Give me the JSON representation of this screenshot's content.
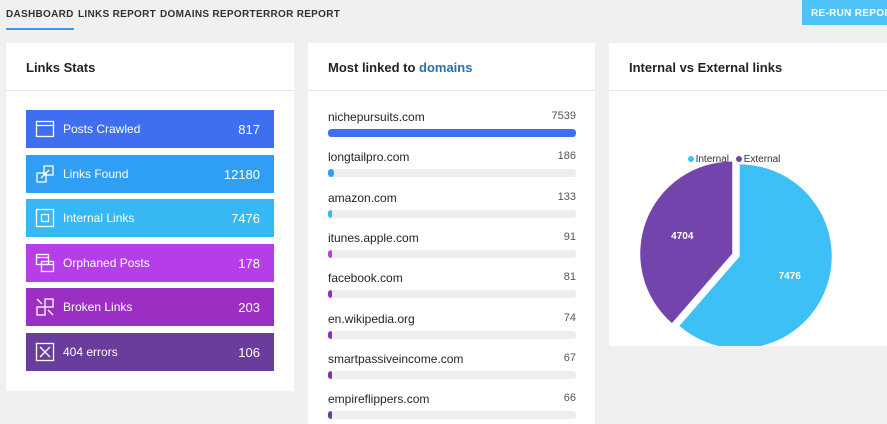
{
  "nav": {
    "tabs": [
      {
        "label": "DASHBOARD",
        "active": true
      },
      {
        "label": "LINKS REPORT",
        "active": false
      },
      {
        "label": "DOMAINS REPORT",
        "active": false
      },
      {
        "label": "ERROR REPORT",
        "active": false
      }
    ],
    "rerun_label": "RE-RUN REPORTS"
  },
  "stats": {
    "title": "Links Stats",
    "items": [
      {
        "label": "Posts Crawled",
        "value": "817",
        "icon": "browser-window-icon",
        "color": "#3f6ff0"
      },
      {
        "label": "Links Found",
        "value": "12180",
        "icon": "link-squares-icon",
        "color": "#2e9ff5"
      },
      {
        "label": "Internal Links",
        "value": "7476",
        "icon": "internal-square-icon",
        "color": "#36b8f4"
      },
      {
        "label": "Orphaned Posts",
        "value": "178",
        "icon": "stacked-windows-icon",
        "color": "#b53ee8"
      },
      {
        "label": "Broken Links",
        "value": "203",
        "icon": "broken-link-icon",
        "color": "#9b2fc4"
      },
      {
        "label": "404 errors",
        "value": "106",
        "icon": "x-square-icon",
        "color": "#6a3d9c"
      }
    ]
  },
  "domains": {
    "title_prefix": "Most linked to",
    "title_accent": "domains",
    "items": [
      {
        "name": "nichepursuits.com",
        "count": 7539,
        "color": "#3f6ff0"
      },
      {
        "name": "longtailpro.com",
        "count": 186,
        "color": "#2e9ff5"
      },
      {
        "name": "amazon.com",
        "count": 133,
        "color": "#36b8f4"
      },
      {
        "name": "itunes.apple.com",
        "count": 91,
        "color": "#b53ee8"
      },
      {
        "name": "facebook.com",
        "count": 81,
        "color": "#9b2fc4"
      },
      {
        "name": "en.wikipedia.org",
        "count": 74,
        "color": "#8a2ebf"
      },
      {
        "name": "smartpassiveincome.com",
        "count": 67,
        "color": "#7a32b0"
      },
      {
        "name": "empireflippers.com",
        "count": 66,
        "color": "#6a3d9c"
      }
    ]
  },
  "pie": {
    "title": "Internal vs External links",
    "chart_data": {
      "type": "pie",
      "labels": [
        "Internal",
        "External"
      ],
      "values": [
        7476,
        4704
      ],
      "colors": [
        "#3cc0f5",
        "#7345ac"
      ],
      "legend": "top"
    }
  }
}
